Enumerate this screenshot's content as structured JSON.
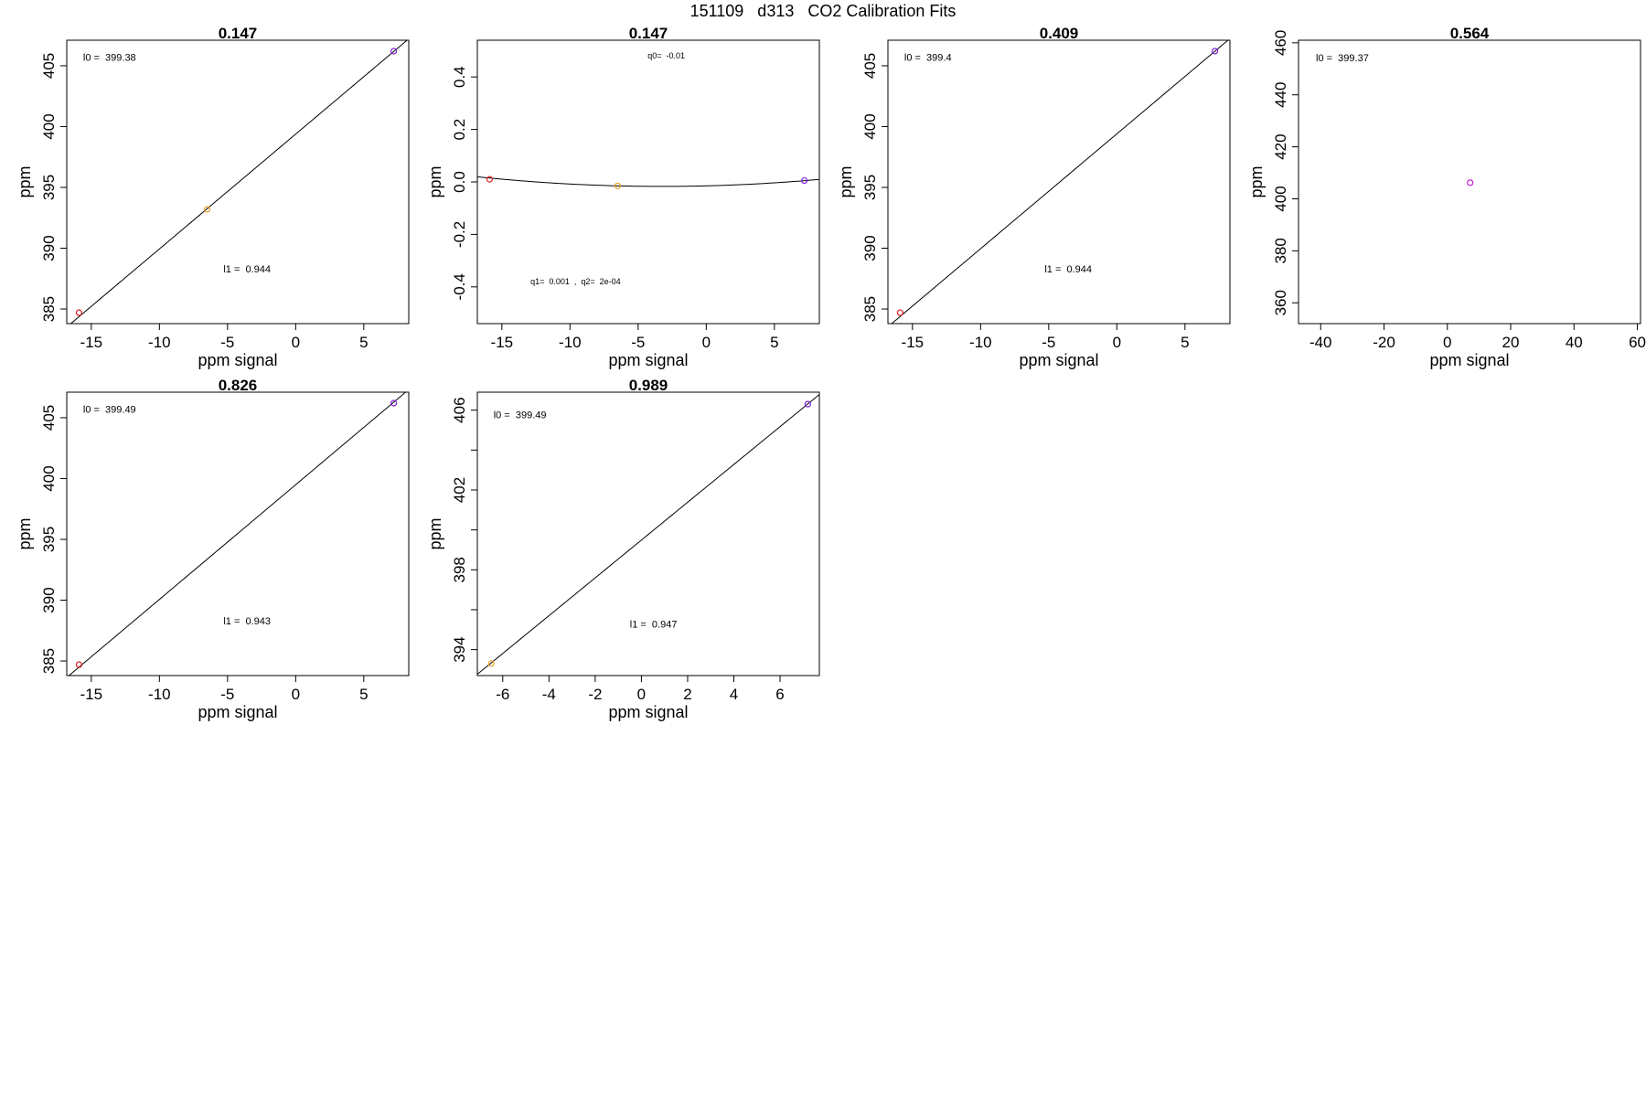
{
  "suptitle": "151109   d313   CO2 Calibration Fits",
  "chart_data": [
    {
      "type": "scatter",
      "title": "0.147",
      "xlabel": "ppm signal",
      "ylabel": "ppm",
      "xlim": [
        -16.8,
        8.3
      ],
      "ylim": [
        383.8,
        407.1
      ],
      "xticks": [
        -15,
        -10,
        -5,
        0,
        5
      ],
      "yticks": [
        385,
        390,
        395,
        400,
        405
      ],
      "fit": {
        "type": "linear",
        "intercept": 399.38,
        "slope": 0.944
      },
      "points": [
        {
          "x": -15.9,
          "y": 384.7,
          "color": "#e02020"
        },
        {
          "x": -6.5,
          "y": 393.2,
          "color": "#e8a020"
        },
        {
          "x": 7.2,
          "y": 406.2,
          "color": "#8020e0"
        }
      ],
      "annotations": [
        {
          "text": "l0 =  399.38",
          "x": -15.6,
          "y": 405.4,
          "size": "normal"
        },
        {
          "text": "l1 =  0.944",
          "x": -5.3,
          "y": 388.0,
          "size": "normal"
        }
      ]
    },
    {
      "type": "scatter",
      "title": "0.147",
      "xlabel": "ppm signal",
      "ylabel": "ppm",
      "xlim": [
        -16.8,
        8.3
      ],
      "ylim": [
        -0.54,
        0.54
      ],
      "xticks": [
        -15,
        -10,
        -5,
        0,
        5
      ],
      "yticks": [
        -0.4,
        -0.2,
        0.0,
        0.2,
        0.4
      ],
      "ytick_labels": [
        "-0.4",
        "-0.2",
        "0.0",
        "0.2",
        "0.4"
      ],
      "fit": {
        "type": "quadratic",
        "q0": -0.015,
        "q1": 0.0013,
        "q2": 0.0002
      },
      "points": [
        {
          "x": -15.9,
          "y": 0.01,
          "color": "#e02020"
        },
        {
          "x": -6.5,
          "y": -0.015,
          "color": "#e8a020"
        },
        {
          "x": 7.2,
          "y": 0.005,
          "color": "#8020e0"
        }
      ],
      "annotations": [
        {
          "text": "q0=  -0.01",
          "x": -4.3,
          "y": 0.47,
          "size": "small"
        },
        {
          "text": "q1=  0.001  ,  q2=  2e-04",
          "x": -12.9,
          "y": -0.39,
          "size": "small"
        }
      ]
    },
    {
      "type": "scatter",
      "title": "0.409",
      "xlabel": "ppm signal",
      "ylabel": "ppm",
      "xlim": [
        -16.8,
        8.3
      ],
      "ylim": [
        383.8,
        407.1
      ],
      "xticks": [
        -15,
        -10,
        -5,
        0,
        5
      ],
      "yticks": [
        385,
        390,
        395,
        400,
        405
      ],
      "fit": {
        "type": "linear",
        "intercept": 399.4,
        "slope": 0.944
      },
      "points": [
        {
          "x": -15.9,
          "y": 384.7,
          "color": "#e02020"
        },
        {
          "x": 7.2,
          "y": 406.2,
          "color": "#8020e0"
        }
      ],
      "annotations": [
        {
          "text": "l0 =  399.4",
          "x": -15.6,
          "y": 405.4,
          "size": "normal"
        },
        {
          "text": "l1 =  0.944",
          "x": -5.3,
          "y": 388.0,
          "size": "normal"
        }
      ]
    },
    {
      "type": "scatter",
      "title": "0.564",
      "xlabel": "ppm signal",
      "ylabel": "ppm",
      "xlim": [
        -47,
        61
      ],
      "ylim": [
        352,
        461
      ],
      "xticks": [
        -40,
        -20,
        0,
        20,
        40,
        60
      ],
      "yticks": [
        360,
        380,
        400,
        420,
        440,
        460
      ],
      "points": [
        {
          "x": 7.2,
          "y": 406.2,
          "color": "#c020d0"
        }
      ],
      "annotations": [
        {
          "text": "l0 =  399.37",
          "x": -41.5,
          "y": 453.0,
          "size": "normal"
        }
      ]
    },
    {
      "type": "scatter",
      "title": "0.826",
      "xlabel": "ppm signal",
      "ylabel": "ppm",
      "xlim": [
        -16.8,
        8.3
      ],
      "ylim": [
        383.8,
        407.1
      ],
      "xticks": [
        -15,
        -10,
        -5,
        0,
        5
      ],
      "yticks": [
        385,
        390,
        395,
        400,
        405
      ],
      "fit": {
        "type": "linear",
        "intercept": 399.49,
        "slope": 0.943
      },
      "points": [
        {
          "x": -15.9,
          "y": 384.7,
          "color": "#e02020"
        },
        {
          "x": 7.2,
          "y": 406.2,
          "color": "#8020e0"
        }
      ],
      "annotations": [
        {
          "text": "l0 =  399.49",
          "x": -15.6,
          "y": 405.4,
          "size": "normal"
        },
        {
          "text": "l1 =  0.943",
          "x": -5.3,
          "y": 388.0,
          "size": "normal"
        }
      ]
    },
    {
      "type": "scatter",
      "title": "0.989",
      "xlabel": "ppm signal",
      "ylabel": "ppm",
      "xlim": [
        -7.1,
        7.7
      ],
      "ylim": [
        392.7,
        406.9
      ],
      "xticks": [
        -6,
        -4,
        -2,
        0,
        2,
        4,
        6
      ],
      "yticks": [
        394,
        396,
        398,
        400,
        402,
        404,
        406
      ],
      "ytick_labels": [
        "394",
        "",
        "398",
        "",
        "402",
        "",
        "406"
      ],
      "fit": {
        "type": "linear",
        "intercept": 399.49,
        "slope": 0.947
      },
      "points": [
        {
          "x": -6.5,
          "y": 393.3,
          "color": "#e8a020"
        },
        {
          "x": 7.2,
          "y": 406.3,
          "color": "#8020e0"
        }
      ],
      "annotations": [
        {
          "text": "l0 =  399.49",
          "x": -6.4,
          "y": 405.6,
          "size": "normal"
        },
        {
          "text": "l1 =  0.947",
          "x": -0.5,
          "y": 395.1,
          "size": "normal"
        }
      ]
    }
  ]
}
